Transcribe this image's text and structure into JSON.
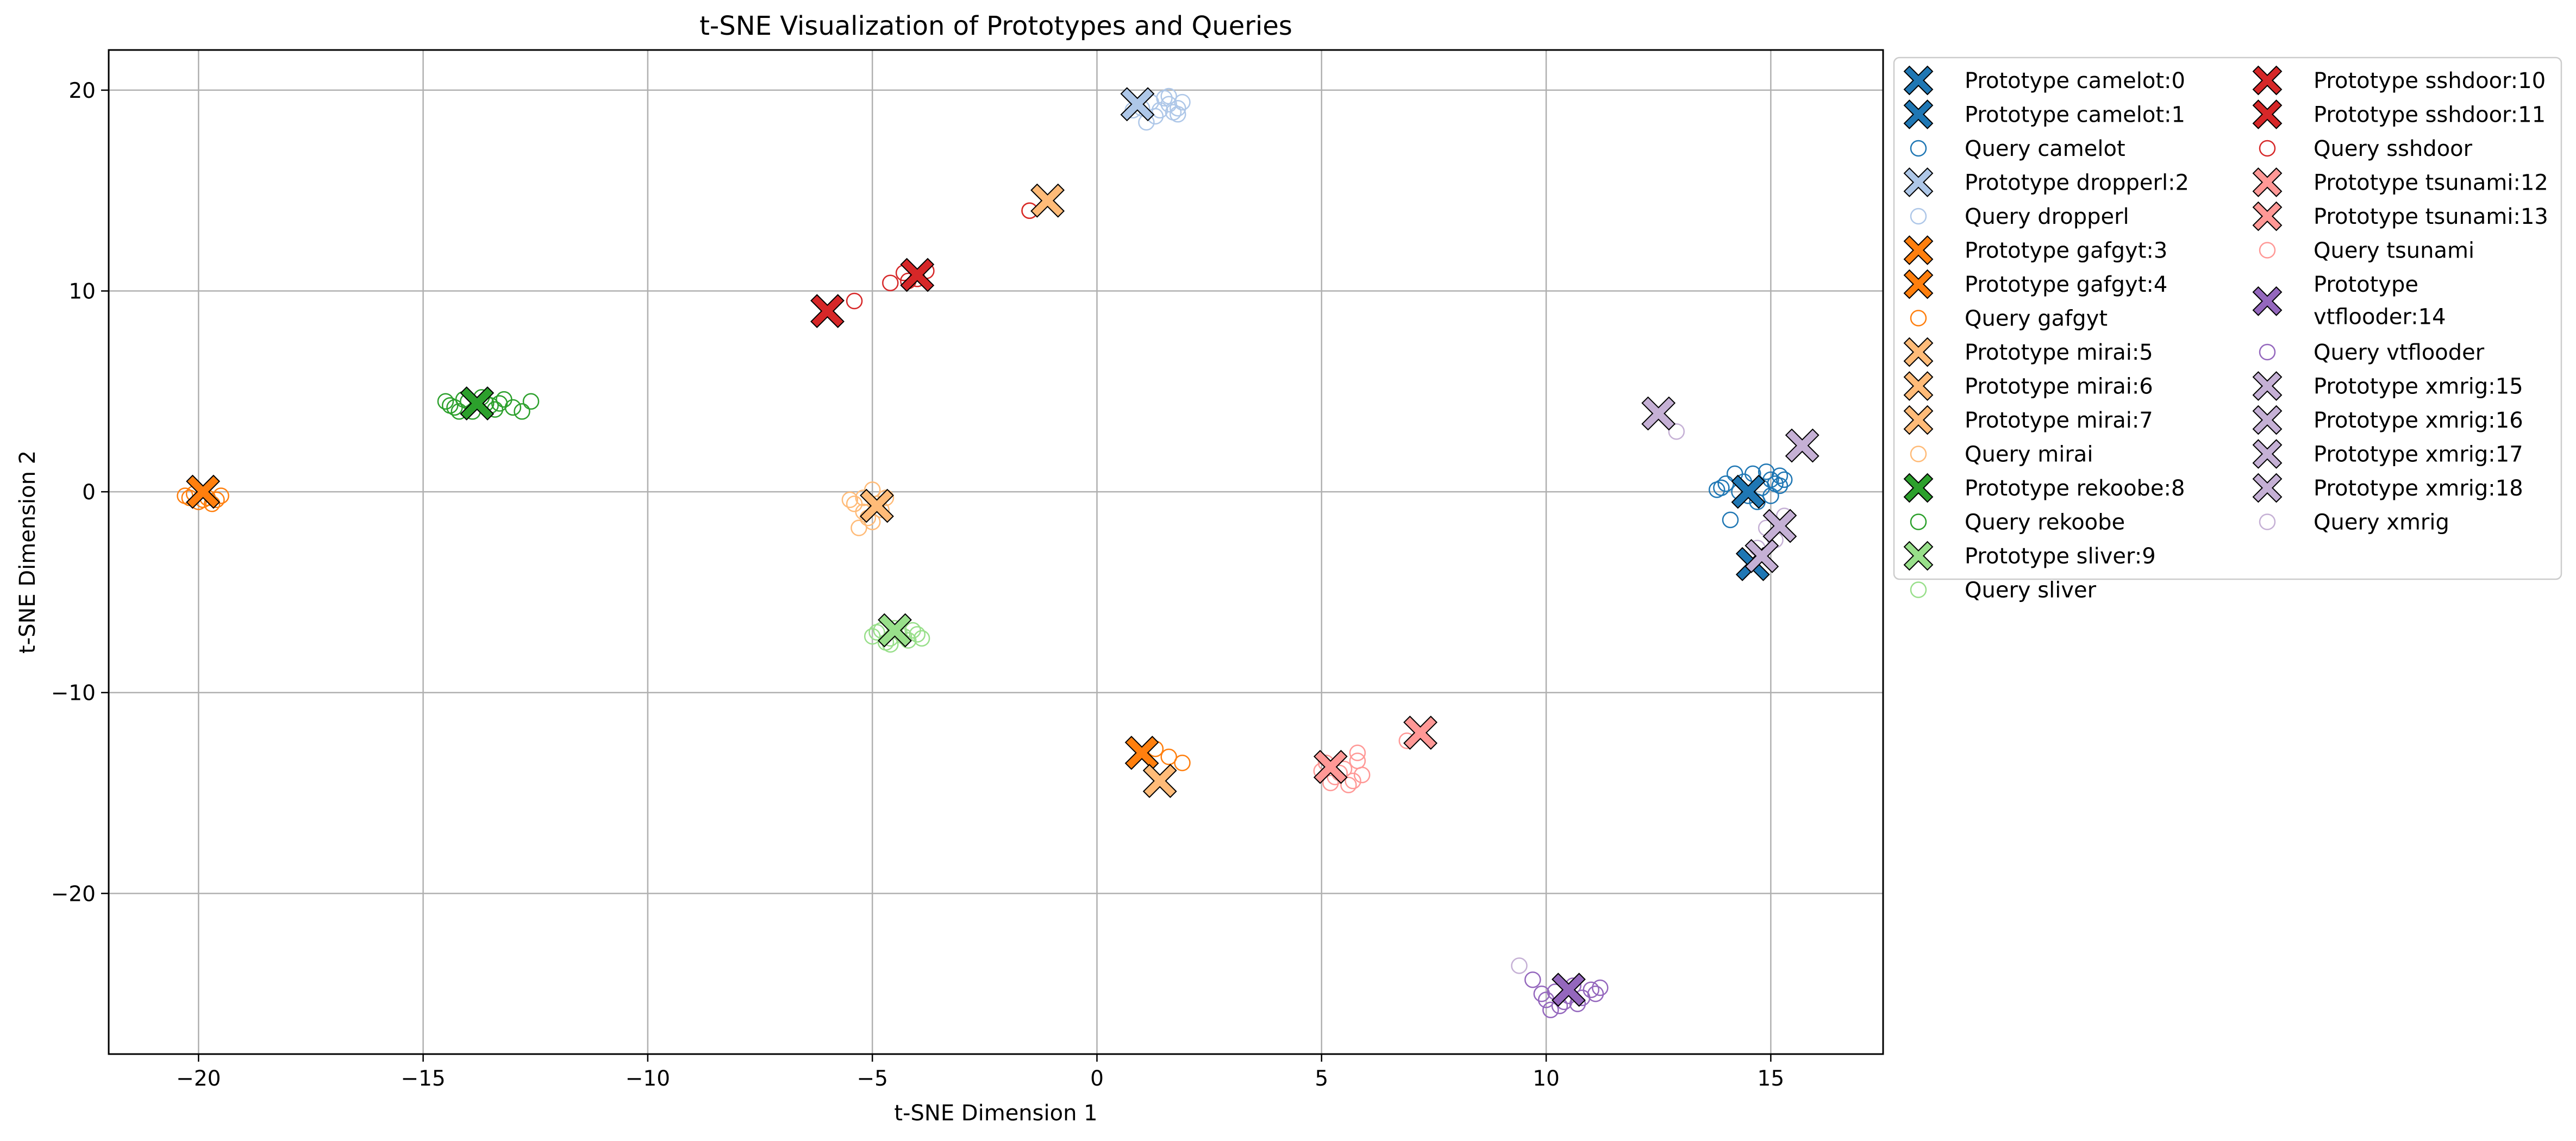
{
  "chart_data": {
    "type": "scatter",
    "title": "t-SNE Visualization of Prototypes and Queries",
    "xlabel": "t-SNE Dimension 1",
    "ylabel": "t-SNE Dimension 2",
    "xlim": [
      -22,
      17.5
    ],
    "ylim": [
      -28,
      22
    ],
    "xticks": [
      -20,
      -15,
      -10,
      -5,
      0,
      5,
      10,
      15
    ],
    "yticks": [
      -20,
      -10,
      0,
      10,
      20
    ],
    "xtick_labels": [
      "−20",
      "−15",
      "−10",
      "−5",
      "0",
      "5",
      "10",
      "15"
    ],
    "ytick_labels": [
      "−20",
      "−10",
      "0",
      "10",
      "20"
    ],
    "grid": true,
    "legend_position": "outside-right-top",
    "legend_columns": 2,
    "colors": {
      "camelot": "#1f77b4",
      "dropperl": "#aec7e8",
      "gafgyt": "#ff7f0e",
      "mirai": "#ffbb78",
      "rekoobe": "#2ca02c",
      "sliver": "#98df8a",
      "sshdoor": "#d62728",
      "tsunami": "#ff9896",
      "vtflooder": "#9467bd",
      "xmrig": "#c5b0d5"
    },
    "prototypes": [
      {
        "label": "Prototype camelot:0",
        "family": "camelot",
        "x": 14.5,
        "y": 0.0
      },
      {
        "label": "Prototype camelot:1",
        "family": "camelot",
        "x": 14.6,
        "y": -3.6
      },
      {
        "label": "Prototype dropperl:2",
        "family": "dropperl",
        "x": 0.9,
        "y": 19.3
      },
      {
        "label": "Prototype gafgyt:3",
        "family": "gafgyt",
        "x": -19.9,
        "y": 0.0
      },
      {
        "label": "Prototype gafgyt:4",
        "family": "gafgyt",
        "x": 1.0,
        "y": -13.0
      },
      {
        "label": "Prototype mirai:5",
        "family": "mirai",
        "x": -1.1,
        "y": 14.5
      },
      {
        "label": "Prototype mirai:6",
        "family": "mirai",
        "x": -4.9,
        "y": -0.7
      },
      {
        "label": "Prototype mirai:7",
        "family": "mirai",
        "x": 1.4,
        "y": -14.4
      },
      {
        "label": "Prototype rekoobe:8",
        "family": "rekoobe",
        "x": -13.8,
        "y": 4.4
      },
      {
        "label": "Prototype sliver:9",
        "family": "sliver",
        "x": -4.5,
        "y": -6.9
      },
      {
        "label": "Prototype sshdoor:10",
        "family": "sshdoor",
        "x": -6.0,
        "y": 9.0
      },
      {
        "label": "Prototype sshdoor:11",
        "family": "sshdoor",
        "x": -4.0,
        "y": 10.8
      },
      {
        "label": "Prototype tsunami:12",
        "family": "tsunami",
        "x": 5.2,
        "y": -13.7
      },
      {
        "label": "Prototype tsunami:13",
        "family": "tsunami",
        "x": 7.2,
        "y": -12.0
      },
      {
        "label": "Prototype vtflooder:14",
        "family": "vtflooder",
        "x": 10.5,
        "y": -24.8
      },
      {
        "label": "Prototype xmrig:15",
        "family": "xmrig",
        "x": 12.5,
        "y": 3.9
      },
      {
        "label": "Prototype xmrig:16",
        "family": "xmrig",
        "x": 15.7,
        "y": 2.3
      },
      {
        "label": "Prototype xmrig:17",
        "family": "xmrig",
        "x": 15.2,
        "y": -1.7
      },
      {
        "label": "Prototype xmrig:18",
        "family": "xmrig",
        "x": 14.8,
        "y": -3.2
      }
    ],
    "queries": [
      {
        "label": "Query camelot",
        "family": "camelot",
        "points": [
          [
            13.9,
            0.2
          ],
          [
            14.0,
            0.4
          ],
          [
            14.2,
            0.9
          ],
          [
            14.4,
            0.5
          ],
          [
            14.6,
            0.9
          ],
          [
            14.8,
            0.2
          ],
          [
            15.0,
            0.6
          ],
          [
            15.2,
            0.8
          ],
          [
            15.2,
            0.3
          ],
          [
            14.1,
            -1.4
          ],
          [
            14.7,
            -0.5
          ],
          [
            15.0,
            -0.2
          ],
          [
            14.3,
            0.0
          ],
          [
            13.8,
            0.1
          ],
          [
            14.9,
            1.0
          ],
          [
            15.1,
            0.4
          ],
          [
            14.5,
            -0.2
          ],
          [
            15.3,
            0.6
          ]
        ]
      },
      {
        "label": "Query dropperl",
        "family": "dropperl",
        "points": [
          [
            1.2,
            19.4
          ],
          [
            1.4,
            19.0
          ],
          [
            1.6,
            19.3
          ],
          [
            1.8,
            19.1
          ],
          [
            1.5,
            19.6
          ],
          [
            1.3,
            18.7
          ],
          [
            1.0,
            19.1
          ],
          [
            1.9,
            19.4
          ],
          [
            1.7,
            18.9
          ],
          [
            0.8,
            19.0
          ],
          [
            1.1,
            18.4
          ],
          [
            1.6,
            19.7
          ],
          [
            1.8,
            18.8
          ]
        ]
      },
      {
        "label": "Query gafgyt",
        "family": "gafgyt",
        "points": [
          [
            -20.2,
            -0.3
          ],
          [
            -20.0,
            -0.5
          ],
          [
            -19.8,
            -0.3
          ],
          [
            -19.6,
            -0.4
          ],
          [
            -20.1,
            -0.1
          ],
          [
            -19.7,
            -0.6
          ],
          [
            -19.9,
            -0.4
          ],
          [
            -20.3,
            -0.2
          ],
          [
            -19.5,
            -0.2
          ],
          [
            -1.5,
            14.0
          ],
          [
            1.6,
            -13.2
          ],
          [
            1.9,
            -13.5
          ],
          [
            1.3,
            -12.8
          ]
        ]
      },
      {
        "label": "Query mirai",
        "family": "mirai",
        "points": [
          [
            -5.4,
            -0.6
          ],
          [
            -5.2,
            -0.3
          ],
          [
            -5.0,
            0.1
          ],
          [
            -4.8,
            -0.9
          ],
          [
            -5.1,
            -1.3
          ],
          [
            -5.3,
            -1.8
          ],
          [
            -4.9,
            -0.6
          ],
          [
            -4.7,
            -0.3
          ],
          [
            -5.2,
            -1.0
          ],
          [
            -5.5,
            -0.4
          ],
          [
            -5.0,
            -1.5
          ]
        ]
      },
      {
        "label": "Query rekoobe",
        "family": "rekoobe",
        "points": [
          [
            -14.5,
            4.5
          ],
          [
            -14.3,
            4.2
          ],
          [
            -14.1,
            4.6
          ],
          [
            -13.9,
            4.0
          ],
          [
            -13.6,
            4.4
          ],
          [
            -13.4,
            4.1
          ],
          [
            -13.2,
            4.6
          ],
          [
            -13.0,
            4.2
          ],
          [
            -12.8,
            4.0
          ],
          [
            -12.6,
            4.5
          ],
          [
            -14.4,
            4.3
          ],
          [
            -14.2,
            4.0
          ],
          [
            -13.7,
            4.7
          ],
          [
            -13.5,
            4.3
          ],
          [
            -14.0,
            4.5
          ],
          [
            -13.3,
            4.4
          ]
        ]
      },
      {
        "label": "Query sliver",
        "family": "sliver",
        "points": [
          [
            -5.0,
            -7.2
          ],
          [
            -4.8,
            -6.9
          ],
          [
            -4.6,
            -7.3
          ],
          [
            -4.4,
            -7.0
          ],
          [
            -4.2,
            -7.4
          ],
          [
            -4.0,
            -7.1
          ],
          [
            -4.7,
            -7.5
          ],
          [
            -4.5,
            -6.8
          ],
          [
            -4.3,
            -7.2
          ],
          [
            -4.9,
            -7.0
          ],
          [
            -4.1,
            -6.9
          ],
          [
            -4.6,
            -7.6
          ],
          [
            -3.9,
            -7.3
          ]
        ]
      },
      {
        "label": "Query sshdoor",
        "family": "sshdoor",
        "points": [
          [
            -5.4,
            9.5
          ],
          [
            -4.6,
            10.4
          ],
          [
            -4.3,
            10.9
          ],
          [
            -4.0,
            10.6
          ],
          [
            -3.8,
            11.0
          ],
          [
            -4.2,
            10.5
          ],
          [
            -1.5,
            14.0
          ]
        ]
      },
      {
        "label": "Query tsunami",
        "family": "tsunami",
        "points": [
          [
            5.0,
            -13.9
          ],
          [
            5.3,
            -14.2
          ],
          [
            5.5,
            -13.8
          ],
          [
            5.7,
            -14.4
          ],
          [
            5.8,
            -13.4
          ],
          [
            5.2,
            -14.5
          ],
          [
            5.4,
            -14.0
          ],
          [
            5.6,
            -14.6
          ],
          [
            5.9,
            -14.1
          ],
          [
            6.9,
            -12.4
          ],
          [
            5.1,
            -13.5
          ],
          [
            5.8,
            -13.0
          ]
        ]
      },
      {
        "label": "Query vtflooder",
        "family": "vtflooder",
        "points": [
          [
            9.7,
            -24.3
          ],
          [
            10.0,
            -25.3
          ],
          [
            10.2,
            -24.9
          ],
          [
            10.4,
            -25.4
          ],
          [
            10.6,
            -24.6
          ],
          [
            10.8,
            -25.2
          ],
          [
            11.0,
            -24.8
          ],
          [
            11.1,
            -25.0
          ],
          [
            10.3,
            -25.6
          ],
          [
            10.7,
            -25.5
          ],
          [
            9.9,
            -25.0
          ],
          [
            10.5,
            -25.1
          ],
          [
            11.2,
            -24.7
          ],
          [
            10.1,
            -25.8
          ]
        ]
      },
      {
        "label": "Query xmrig",
        "family": "xmrig",
        "points": [
          [
            12.9,
            3.0
          ],
          [
            14.9,
            -1.8
          ],
          [
            15.1,
            -2.4
          ],
          [
            14.7,
            -2.8
          ],
          [
            15.3,
            -1.2
          ],
          [
            9.4,
            -23.6
          ]
        ]
      }
    ],
    "legend_order": [
      "Prototype camelot:0",
      "Prototype camelot:1",
      "Query camelot",
      "Prototype dropperl:2",
      "Query dropperl",
      "Prototype gafgyt:3",
      "Prototype gafgyt:4",
      "Query gafgyt",
      "Prototype mirai:5",
      "Prototype mirai:6",
      "Prototype mirai:7",
      "Query mirai",
      "Prototype rekoobe:8",
      "Query rekoobe",
      "Prototype sliver:9",
      "Query sliver",
      "Prototype sshdoor:10",
      "Prototype sshdoor:11",
      "Query sshdoor",
      "Prototype tsunami:12",
      "Prototype tsunami:13",
      "Query tsunami",
      "Prototype vtflooder:14",
      "Query vtflooder",
      "Prototype xmrig:15",
      "Prototype xmrig:16",
      "Prototype xmrig:17",
      "Prototype xmrig:18",
      "Query xmrig"
    ]
  }
}
